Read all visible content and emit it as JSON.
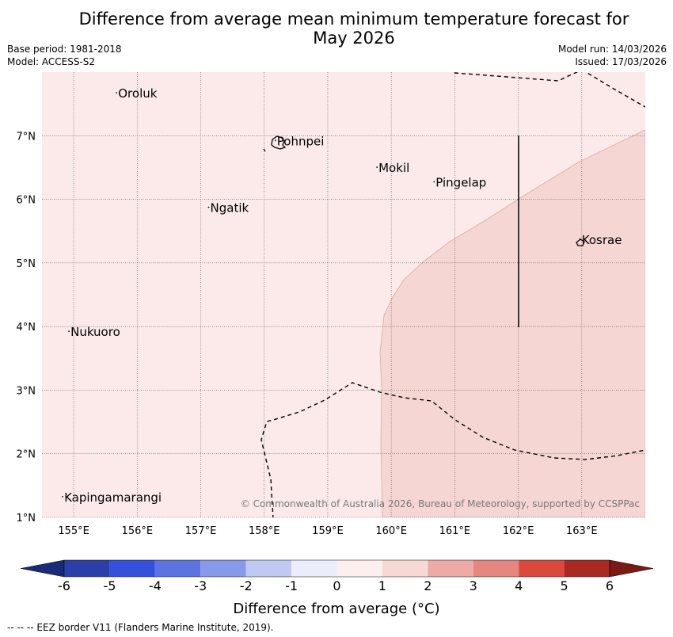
{
  "title": "Difference from average mean minimum temperature forecast for May 2026",
  "title_line1": "Difference from average mean minimum temperature forecast for",
  "title_line2": "May 2026",
  "base_period": "Base period: 1981-2018",
  "model": "Model: ACCESS-S2",
  "model_run": "Model run: 14/03/2026",
  "issued": "Issued: 17/03/2026",
  "map": {
    "lon_range": [
      154.5,
      164.0
    ],
    "lat_range": [
      1.0,
      8.0
    ],
    "lon_ticks": [
      "155°E",
      "156°E",
      "157°E",
      "158°E",
      "159°E",
      "160°E",
      "161°E",
      "162°E",
      "163°E"
    ],
    "lat_ticks": [
      "1°N",
      "2°N",
      "3°N",
      "4°N",
      "5°N",
      "6°N",
      "7°N"
    ],
    "places": [
      {
        "name": "Oroluk",
        "lon": 155.7,
        "lat": 7.6
      },
      {
        "name": "Pohnpei",
        "lon": 158.2,
        "lat": 6.85
      },
      {
        "name": "Mokil",
        "lon": 159.8,
        "lat": 6.43
      },
      {
        "name": "Pingelap",
        "lon": 160.7,
        "lat": 6.2
      },
      {
        "name": "Ngatik",
        "lon": 157.15,
        "lat": 5.8
      },
      {
        "name": "Kosrae",
        "lon": 163.0,
        "lat": 5.3
      },
      {
        "name": "Nukuoro",
        "lon": 154.95,
        "lat": 3.85
      },
      {
        "name": "Kapingamarangi",
        "lon": 154.85,
        "lat": 1.25
      }
    ],
    "credit": "© Commonwealth of Australia 2026, Bureau of Meteorology, supported by CCSPPac",
    "background_category": "0 to 1",
    "highlight_category": "1 to 2",
    "background_color": "#fbeae9",
    "highlight_color": "#f5d6d3"
  },
  "colorbar": {
    "labels": [
      "-6",
      "-5",
      "-4",
      "-3",
      "-2",
      "-1",
      "0",
      "1",
      "2",
      "3",
      "4",
      "5",
      "6"
    ],
    "colors": [
      "#2a40a8",
      "#3551dc",
      "#5c74e0",
      "#8799e8",
      "#c1c9f2",
      "#ebedfb",
      "#fdefee",
      "#f7d8d5",
      "#eeaaa6",
      "#e5867f",
      "#d94a3d",
      "#a82a22"
    ],
    "low_color": "#1a2a7a",
    "high_color": "#7a1a14",
    "title": "Difference from average (°C)"
  },
  "footnote": "--  --  -- EEZ border V11 (Flanders Marine Institute, 2019)."
}
